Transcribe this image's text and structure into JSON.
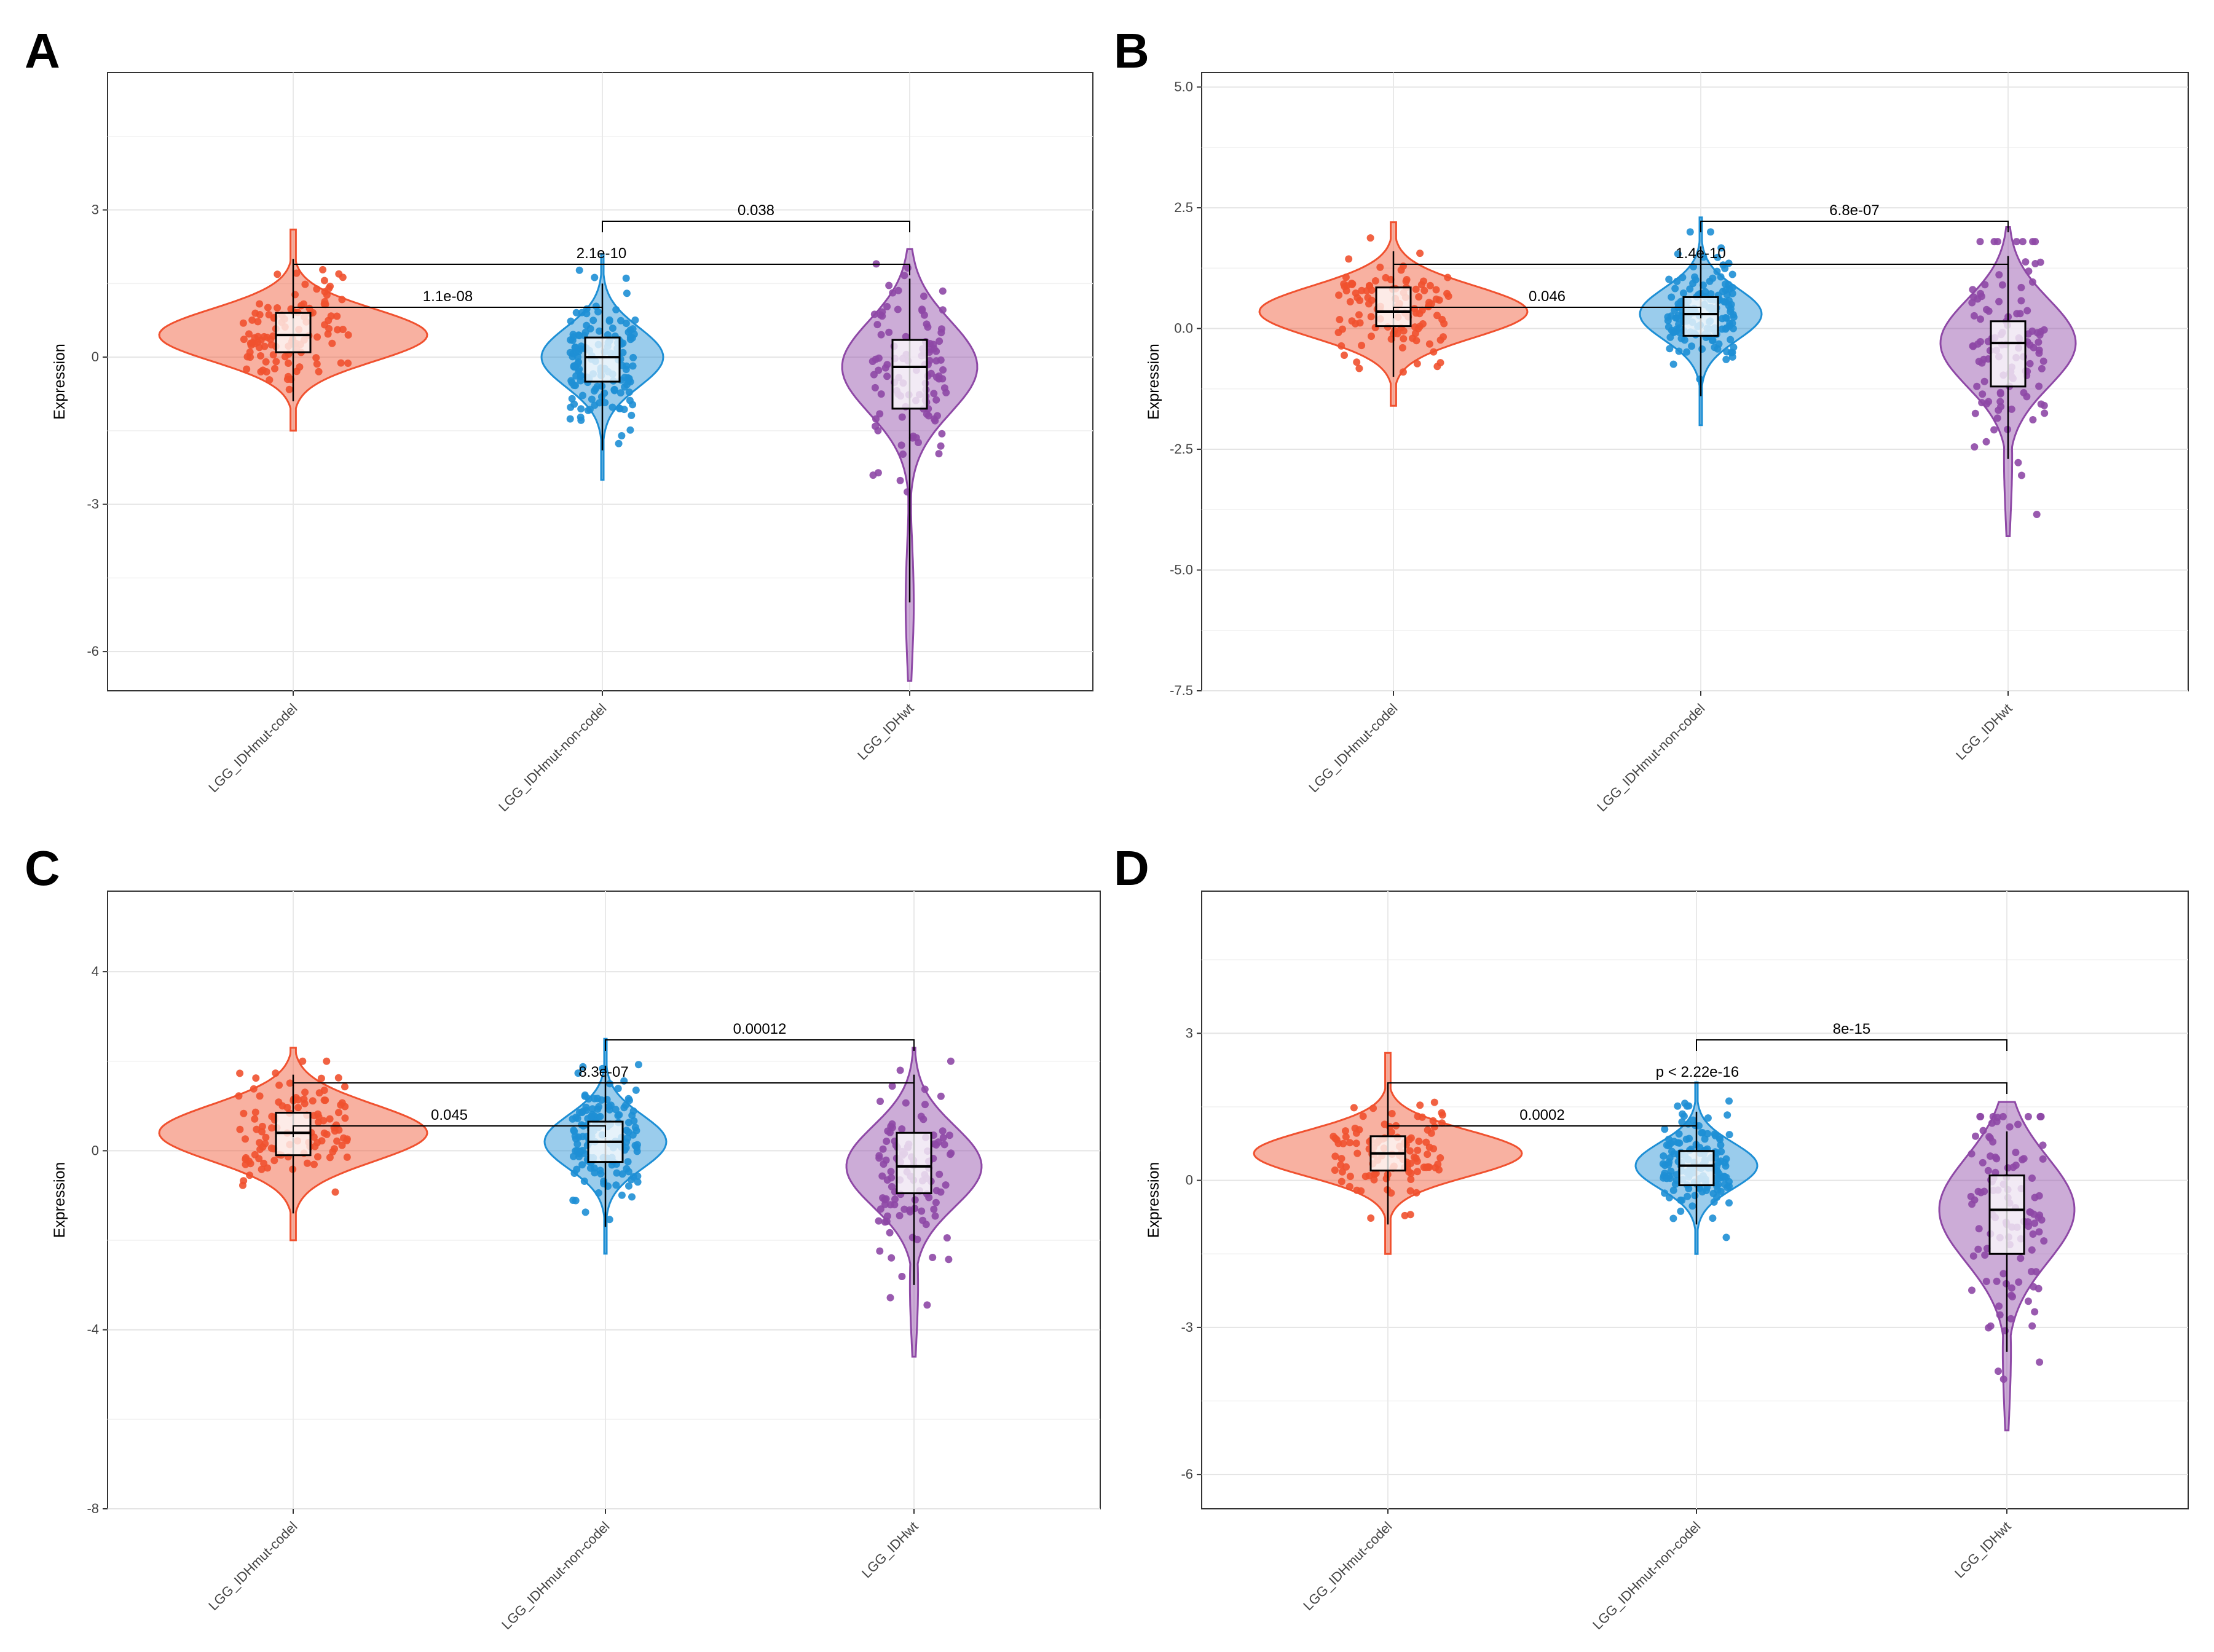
{
  "figure": {
    "panels": [
      {
        "letter": "A"
      },
      {
        "letter": "B"
      },
      {
        "letter": "C"
      },
      {
        "letter": "D"
      }
    ]
  },
  "chart_data": [
    {
      "panel": "A",
      "type": "violin",
      "ylabel": "Expression",
      "categories": [
        "LGG_IDHmut-codel",
        "LGG_IDHmut-non-codel",
        "LGG_IDHwt"
      ],
      "colors": [
        "#F0512F",
        "#1E8FD5",
        "#8E48A6"
      ],
      "ylim": [
        -6.8,
        5.8
      ],
      "yticks": [
        3,
        0,
        -3,
        -6
      ],
      "ytick_labels": [
        "3",
        "0",
        "-3",
        "-6"
      ],
      "box_stats": [
        {
          "q1": 0.1,
          "median": 0.45,
          "q3": 0.9,
          "whisker_low": -0.9,
          "whisker_high": 2.0
        },
        {
          "q1": -0.5,
          "median": 0.0,
          "q3": 0.4,
          "whisker_low": -1.9,
          "whisker_high": 1.5
        },
        {
          "q1": -1.05,
          "median": -0.2,
          "q3": 0.35,
          "whisker_low": -5.0,
          "whisker_high": 1.6
        }
      ],
      "comparisons": [
        {
          "from": 0,
          "to": 1,
          "p": "1.1e-08"
        },
        {
          "from": 0,
          "to": 2,
          "p": "2.1e-10"
        },
        {
          "from": 1,
          "to": 2,
          "p": "0.038"
        }
      ]
    },
    {
      "panel": "B",
      "type": "violin",
      "ylabel": "Expression",
      "categories": [
        "LGG_IDHmut-codel",
        "LGG_IDHmut-non-codel",
        "LGG_IDHwt"
      ],
      "colors": [
        "#F0512F",
        "#1E8FD5",
        "#8E48A6"
      ],
      "ylim": [
        -7.5,
        5.3
      ],
      "yticks": [
        5.0,
        2.5,
        0.0,
        -2.5,
        -5.0,
        -7.5
      ],
      "ytick_labels": [
        "5.0",
        "2.5",
        "0.0",
        "-2.5",
        "-5.0",
        "-7.5"
      ],
      "box_stats": [
        {
          "q1": 0.05,
          "median": 0.35,
          "q3": 0.85,
          "whisker_low": -1.0,
          "whisker_high": 1.6
        },
        {
          "q1": -0.15,
          "median": 0.3,
          "q3": 0.65,
          "whisker_low": -1.4,
          "whisker_high": 1.7
        },
        {
          "q1": -1.2,
          "median": -0.3,
          "q3": 0.15,
          "whisker_low": -2.7,
          "whisker_high": 1.5
        }
      ],
      "comparisons": [
        {
          "from": 0,
          "to": 1,
          "p": "0.046"
        },
        {
          "from": 0,
          "to": 2,
          "p": "1.4e-10"
        },
        {
          "from": 1,
          "to": 2,
          "p": "6.8e-07"
        }
      ]
    },
    {
      "panel": "C",
      "type": "violin",
      "ylabel": "Expression",
      "categories": [
        "LGG_IDHmut-codel",
        "LGG_IDHmut-non-codel",
        "LGG_IDHwt"
      ],
      "colors": [
        "#F0512F",
        "#1E8FD5",
        "#8E48A6"
      ],
      "ylim": [
        -8.0,
        5.8
      ],
      "yticks": [
        4,
        0,
        -4,
        -8
      ],
      "ytick_labels": [
        "4",
        "0",
        "-4",
        "-8"
      ],
      "box_stats": [
        {
          "q1": -0.1,
          "median": 0.4,
          "q3": 0.85,
          "whisker_low": -1.4,
          "whisker_high": 1.7
        },
        {
          "q1": -0.25,
          "median": 0.2,
          "q3": 0.65,
          "whisker_low": -1.7,
          "whisker_high": 1.9
        },
        {
          "q1": -0.95,
          "median": -0.35,
          "q3": 0.4,
          "whisker_low": -3.0,
          "whisker_high": 1.7
        }
      ],
      "comparisons": [
        {
          "from": 0,
          "to": 1,
          "p": "0.045"
        },
        {
          "from": 0,
          "to": 2,
          "p": "8.3e-07"
        },
        {
          "from": 1,
          "to": 2,
          "p": "0.00012"
        }
      ]
    },
    {
      "panel": "D",
      "type": "violin",
      "ylabel": "Expression",
      "categories": [
        "LGG_IDHmut-codel",
        "LGG_IDHmut-non-codel",
        "LGG_IDHwt"
      ],
      "colors": [
        "#F0512F",
        "#1E8FD5",
        "#8E48A6"
      ],
      "ylim": [
        -6.7,
        5.9
      ],
      "yticks": [
        3,
        0,
        -3,
        -6
      ],
      "ytick_labels": [
        "3",
        "0",
        "-3",
        "-6"
      ],
      "box_stats": [
        {
          "q1": 0.2,
          "median": 0.55,
          "q3": 0.9,
          "whisker_low": -0.9,
          "whisker_high": 2.0
        },
        {
          "q1": -0.1,
          "median": 0.3,
          "q3": 0.6,
          "whisker_low": -0.9,
          "whisker_high": 1.4
        },
        {
          "q1": -1.5,
          "median": -0.6,
          "q3": 0.1,
          "whisker_low": -3.5,
          "whisker_high": 1.0
        }
      ],
      "comparisons": [
        {
          "from": 0,
          "to": 1,
          "p": "0.0002"
        },
        {
          "from": 0,
          "to": 2,
          "p": "p < 2.22e-16"
        },
        {
          "from": 1,
          "to": 2,
          "p": "8e-15"
        }
      ]
    }
  ]
}
